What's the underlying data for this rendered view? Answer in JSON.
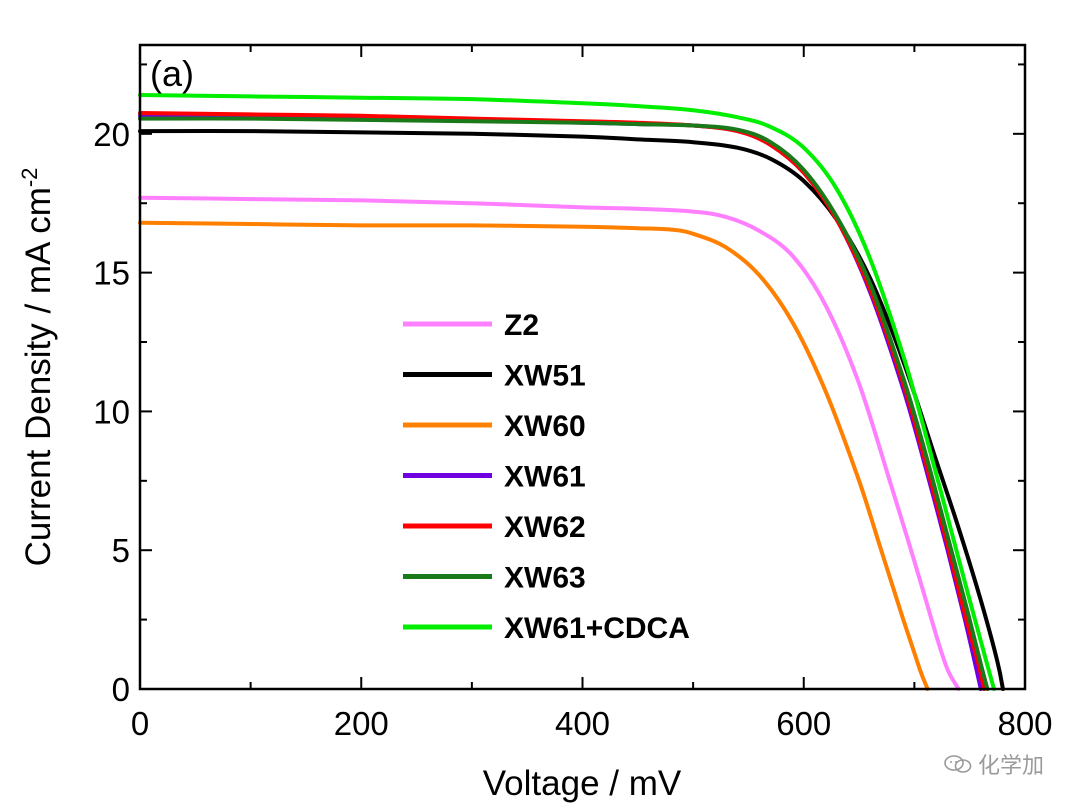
{
  "chart_data": {
    "type": "line",
    "panel_label": "(a)",
    "xlabel": "Voltage / mV",
    "ylabel_main": "Current Density / mA cm",
    "ylabel_sup": "-2",
    "xlim": [
      0,
      800
    ],
    "ylim": [
      0,
      23.2
    ],
    "xticks": [
      0,
      200,
      400,
      600,
      800
    ],
    "yticks": [
      0,
      5,
      10,
      15,
      20
    ],
    "grid": false,
    "legend_position": "center-left",
    "series": [
      {
        "name": "Z2",
        "color": "#ff80ff",
        "x": [
          0,
          100,
          200,
          300,
          400,
          450,
          500,
          530,
          560,
          590,
          620,
          650,
          680,
          700,
          720,
          730,
          740
        ],
        "y": [
          17.7,
          17.65,
          17.6,
          17.5,
          17.35,
          17.3,
          17.2,
          17.0,
          16.5,
          15.6,
          13.8,
          11.0,
          7.2,
          4.6,
          1.9,
          0.7,
          0
        ]
      },
      {
        "name": "XW51",
        "color": "#000000",
        "x": [
          0,
          100,
          200,
          300,
          400,
          450,
          500,
          540,
          570,
          600,
          630,
          660,
          690,
          720,
          740,
          760,
          775,
          780
        ],
        "y": [
          20.1,
          20.1,
          20.05,
          20.0,
          19.9,
          19.8,
          19.7,
          19.5,
          19.1,
          18.3,
          16.9,
          14.8,
          11.8,
          8.2,
          5.8,
          3.2,
          1.0,
          0
        ]
      },
      {
        "name": "XW60",
        "color": "#ff8000",
        "x": [
          0,
          100,
          200,
          300,
          400,
          450,
          480,
          500,
          530,
          560,
          590,
          620,
          650,
          670,
          690,
          705,
          712
        ],
        "y": [
          16.8,
          16.75,
          16.7,
          16.7,
          16.65,
          16.6,
          16.55,
          16.4,
          15.9,
          14.9,
          13.2,
          10.7,
          7.5,
          5.0,
          2.5,
          0.7,
          0
        ]
      },
      {
        "name": "XW61",
        "color": "#7000e0",
        "x": [
          0,
          100,
          200,
          300,
          400,
          450,
          500,
          540,
          570,
          600,
          630,
          660,
          690,
          710,
          730,
          745,
          755,
          760
        ],
        "y": [
          20.65,
          20.65,
          20.6,
          20.5,
          20.4,
          20.35,
          20.3,
          20.1,
          19.6,
          18.6,
          16.9,
          14.3,
          10.8,
          8.0,
          5.0,
          2.6,
          0.9,
          0
        ]
      },
      {
        "name": "XW62",
        "color": "#ff0000",
        "x": [
          0,
          100,
          200,
          300,
          400,
          450,
          500,
          540,
          570,
          600,
          630,
          660,
          690,
          710,
          730,
          745,
          758,
          763
        ],
        "y": [
          20.75,
          20.7,
          20.65,
          20.55,
          20.45,
          20.4,
          20.3,
          20.1,
          19.6,
          18.6,
          16.9,
          14.4,
          11.0,
          8.2,
          5.2,
          2.8,
          0.9,
          0
        ]
      },
      {
        "name": "XW63",
        "color": "#1a7a1a",
        "x": [
          0,
          100,
          200,
          300,
          400,
          450,
          500,
          540,
          570,
          600,
          630,
          660,
          690,
          710,
          730,
          748,
          760,
          766
        ],
        "y": [
          20.55,
          20.55,
          20.5,
          20.45,
          20.4,
          20.35,
          20.3,
          20.15,
          19.7,
          18.7,
          17.0,
          14.6,
          11.2,
          8.5,
          5.5,
          2.8,
          0.9,
          0
        ]
      },
      {
        "name": "XW61+CDCA",
        "color": "#00ee00",
        "x": [
          0,
          100,
          200,
          300,
          400,
          450,
          500,
          540,
          570,
          600,
          630,
          660,
          690,
          710,
          730,
          750,
          765,
          772
        ],
        "y": [
          21.4,
          21.35,
          21.3,
          21.25,
          21.1,
          21.0,
          20.85,
          20.6,
          20.25,
          19.5,
          18.0,
          15.5,
          12.0,
          9.2,
          6.2,
          3.2,
          1.0,
          0
        ]
      }
    ]
  },
  "watermark": {
    "text": "化学加"
  }
}
